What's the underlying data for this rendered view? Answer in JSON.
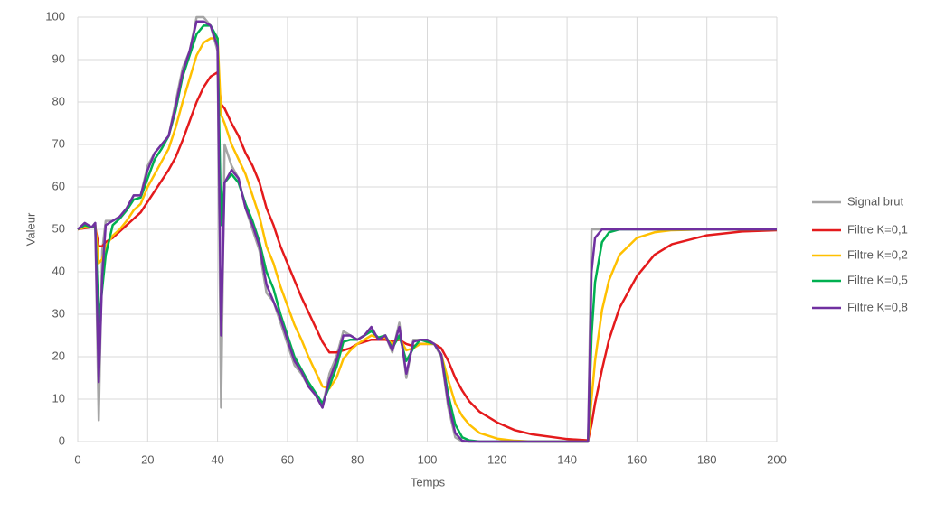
{
  "chart_data": {
    "type": "line",
    "x_label": "Temps",
    "y_label": "Valeur",
    "x": [
      0,
      2,
      4,
      5,
      6,
      7,
      8,
      10,
      12,
      14,
      16,
      18,
      20,
      22,
      24,
      26,
      28,
      30,
      32,
      34,
      36,
      38,
      40,
      41,
      42,
      44,
      46,
      48,
      50,
      52,
      54,
      56,
      58,
      60,
      62,
      64,
      66,
      68,
      70,
      72,
      74,
      76,
      78,
      80,
      82,
      84,
      86,
      88,
      90,
      92,
      94,
      96,
      98,
      100,
      102,
      104,
      106,
      108,
      110,
      112,
      115,
      120,
      125,
      130,
      140,
      146,
      147,
      148,
      150,
      152,
      155,
      160,
      165,
      170,
      180,
      190,
      200
    ],
    "series": [
      {
        "name": "Signal brut",
        "color": "#a5a5a5",
        "values": [
          50,
          51.5,
          50.5,
          51.5,
          5,
          45,
          52,
          52,
          53,
          55,
          58,
          58,
          65,
          68,
          70,
          72,
          80,
          88,
          92,
          100,
          100,
          98,
          92,
          8,
          70,
          65,
          62,
          55,
          50,
          45,
          35,
          33,
          28,
          23,
          18,
          16,
          13,
          11,
          8,
          16,
          20,
          26,
          25,
          24,
          25,
          27,
          24,
          25,
          21,
          28,
          15,
          24,
          24,
          24,
          23,
          20,
          8,
          1,
          0,
          0,
          0,
          0,
          0,
          0,
          0,
          0,
          50,
          50,
          50,
          50,
          50,
          50,
          50,
          50,
          50,
          50,
          50
        ]
      },
      {
        "name": "Filtre K=0,1",
        "color": "#e41a1c",
        "values": [
          50,
          50.3,
          50.5,
          50.6,
          46,
          46,
          47,
          48,
          49.5,
          51,
          52.5,
          54,
          56.5,
          59,
          61.5,
          64,
          67,
          71,
          75.5,
          80,
          83.5,
          86,
          87,
          79.5,
          78.5,
          75,
          72,
          68,
          65,
          61,
          55,
          51,
          46,
          42,
          38,
          34,
          30.5,
          27,
          23.5,
          21,
          21,
          21.5,
          22,
          23,
          23.5,
          24,
          24,
          24,
          23.5,
          24,
          23,
          22.5,
          23,
          23,
          23,
          22,
          19,
          15,
          12,
          9.5,
          7,
          4.5,
          2.7,
          1.7,
          0.6,
          0.3,
          4,
          9,
          17,
          24,
          31.5,
          39,
          44,
          46.5,
          48.6,
          49.5,
          49.8
        ]
      },
      {
        "name": "Filtre K=0,2",
        "color": "#ffc000",
        "values": [
          50,
          50.5,
          50.5,
          51,
          42,
          43,
          46,
          48.5,
          50,
          52,
          54.5,
          56,
          60,
          63,
          66,
          69,
          74,
          80,
          85.5,
          91,
          94,
          95,
          95,
          77,
          75,
          70,
          66.5,
          63,
          58,
          53,
          46,
          42,
          36.5,
          32,
          27.5,
          24,
          20,
          16.5,
          13,
          12.5,
          15,
          19.5,
          21.5,
          23,
          24,
          25,
          24.5,
          24.5,
          23,
          24.5,
          21.5,
          22,
          23,
          23,
          23,
          20.5,
          14.5,
          9,
          6,
          4,
          2,
          0.7,
          0.2,
          0,
          0,
          0,
          10,
          19,
          31,
          38,
          44,
          48,
          49.3,
          49.8,
          50,
          50,
          50
        ]
      },
      {
        "name": "Filtre K=0,5",
        "color": "#00b050",
        "values": [
          50,
          51,
          50.5,
          51,
          28,
          36,
          44,
          51,
          52.5,
          54.5,
          57,
          57.5,
          62,
          66.5,
          69,
          72,
          78,
          86,
          91,
          96,
          98,
          98,
          95,
          51,
          61,
          63,
          61,
          56,
          52,
          47,
          40,
          36,
          30,
          25,
          20,
          17,
          14,
          11.5,
          9,
          13,
          17.5,
          23.5,
          24,
          24,
          25,
          26,
          24.5,
          25,
          22,
          25,
          19,
          22,
          24,
          23.5,
          23,
          20.5,
          11,
          4,
          1,
          0.3,
          0,
          0,
          0,
          0,
          0,
          0,
          25,
          37.5,
          47,
          49.3,
          50,
          50,
          50,
          50,
          50,
          50,
          50
        ]
      },
      {
        "name": "Filtre K=0,8",
        "color": "#7030a0",
        "values": [
          50,
          51.5,
          50.5,
          51.5,
          14,
          39,
          51,
          52,
          53,
          55,
          58,
          58,
          64,
          68,
          70,
          72,
          79,
          87,
          92,
          99,
          99,
          98,
          93,
          25,
          61,
          64,
          62,
          55,
          51,
          46,
          37,
          33,
          29,
          24,
          19,
          16.5,
          13,
          11,
          8,
          14.5,
          19,
          25,
          25,
          24,
          25,
          27,
          24,
          25,
          21.5,
          27,
          16,
          23.5,
          24,
          24,
          23,
          20.5,
          9,
          2,
          0.2,
          0,
          0,
          0,
          0,
          0,
          0,
          0,
          40,
          48,
          50,
          50,
          50,
          50,
          50,
          50,
          50,
          50,
          50
        ]
      }
    ],
    "xlim": [
      0,
      200
    ],
    "xticks": [
      0,
      20,
      40,
      60,
      80,
      100,
      120,
      140,
      160,
      180,
      200
    ],
    "ylim": [
      0,
      100
    ],
    "yticks": [
      0,
      10,
      20,
      30,
      40,
      50,
      60,
      70,
      80,
      90,
      100
    ],
    "grid": true,
    "legend": "right"
  }
}
